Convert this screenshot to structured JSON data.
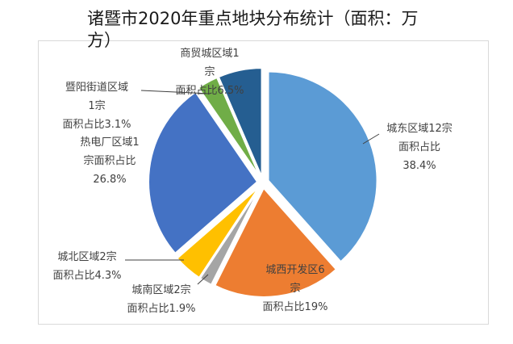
{
  "chart_data": {
    "type": "pie",
    "title": "诸暨市2020年重点地块分布统计（面积：万方）",
    "categories": [
      "城东区域12宗",
      "城西开发区6宗",
      "城南区域2宗",
      "城北区域2宗",
      "热电厂区域1宗",
      "暨阳街道区域1宗",
      "商贸城区域1宗"
    ],
    "values": [
      38.4,
      19.0,
      1.9,
      4.3,
      26.8,
      3.1,
      6.5
    ],
    "colors": [
      "#5b9bd5",
      "#ed7d31",
      "#a5a5a5",
      "#ffc000",
      "#4472c4",
      "#70ad47",
      "#255e91"
    ],
    "labels": [
      [
        "城东区域12宗",
        "面积占比",
        "38.4%"
      ],
      [
        "城西开发区6",
        "宗",
        "面积占比19%"
      ],
      [
        "城南区域2宗",
        "面积占比1.9%"
      ],
      [
        "城北区域2宗",
        "面积占比4.3%"
      ],
      [
        "热电厂区域1",
        "宗面积占比",
        "26.8%"
      ],
      [
        "暨阳街道区域",
        "1宗",
        "面积占比3.1%"
      ],
      [
        "商贸城区域1",
        "宗",
        "面积占比6.5%"
      ]
    ],
    "legend": "none"
  }
}
